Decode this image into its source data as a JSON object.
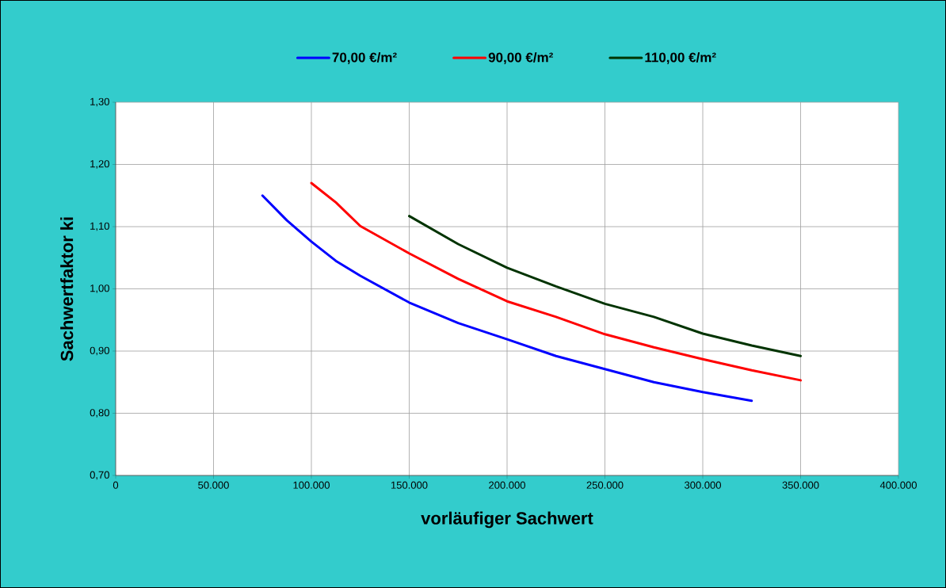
{
  "chart_data": {
    "type": "line",
    "xlabel": "vorläufiger Sachwert",
    "ylabel": "Sachwertfaktor ki",
    "xlim": [
      0,
      400000
    ],
    "ylim": [
      0.7,
      1.3
    ],
    "xticks": [
      {
        "value": 0,
        "label": "0"
      },
      {
        "value": 50000,
        "label": "50.000"
      },
      {
        "value": 100000,
        "label": "100.000"
      },
      {
        "value": 150000,
        "label": "150.000"
      },
      {
        "value": 200000,
        "label": "200.000"
      },
      {
        "value": 250000,
        "label": "250.000"
      },
      {
        "value": 300000,
        "label": "300.000"
      },
      {
        "value": 350000,
        "label": "350.000"
      },
      {
        "value": 400000,
        "label": "400.000"
      }
    ],
    "yticks": [
      {
        "value": 0.7,
        "label": "0,70"
      },
      {
        "value": 0.8,
        "label": "0,80"
      },
      {
        "value": 0.9,
        "label": "0,90"
      },
      {
        "value": 1.0,
        "label": "1,00"
      },
      {
        "value": 1.1,
        "label": "1,10"
      },
      {
        "value": 1.2,
        "label": "1,20"
      },
      {
        "value": 1.3,
        "label": "1,30"
      }
    ],
    "grid": true,
    "legend": "top",
    "marker": "none",
    "line_style": "solid",
    "series": [
      {
        "name": "70,00 €/m²",
        "color": "#0000ff",
        "x": [
          75000,
          87500,
          100000,
          112500,
          125000,
          150000,
          175000,
          200000,
          225000,
          250000,
          275000,
          300000,
          325000
        ],
        "values": [
          1.15,
          1.11,
          1.076,
          1.045,
          1.021,
          0.978,
          0.945,
          0.919,
          0.892,
          0.871,
          0.85,
          0.834,
          0.82
        ]
      },
      {
        "name": "90,00 €/m²",
        "color": "#ff0000",
        "x": [
          100000,
          112500,
          125000,
          150000,
          175000,
          200000,
          225000,
          250000,
          275000,
          300000,
          325000,
          350000
        ],
        "values": [
          1.17,
          1.139,
          1.101,
          1.057,
          1.016,
          0.98,
          0.955,
          0.927,
          0.906,
          0.887,
          0.869,
          0.853
        ]
      },
      {
        "name": "110,00 €/m²",
        "color": "#003300",
        "x": [
          150000,
          175000,
          200000,
          225000,
          250000,
          275000,
          300000,
          325000,
          350000
        ],
        "values": [
          1.117,
          1.072,
          1.034,
          1.004,
          0.976,
          0.955,
          0.928,
          0.909,
          0.892
        ]
      }
    ]
  }
}
